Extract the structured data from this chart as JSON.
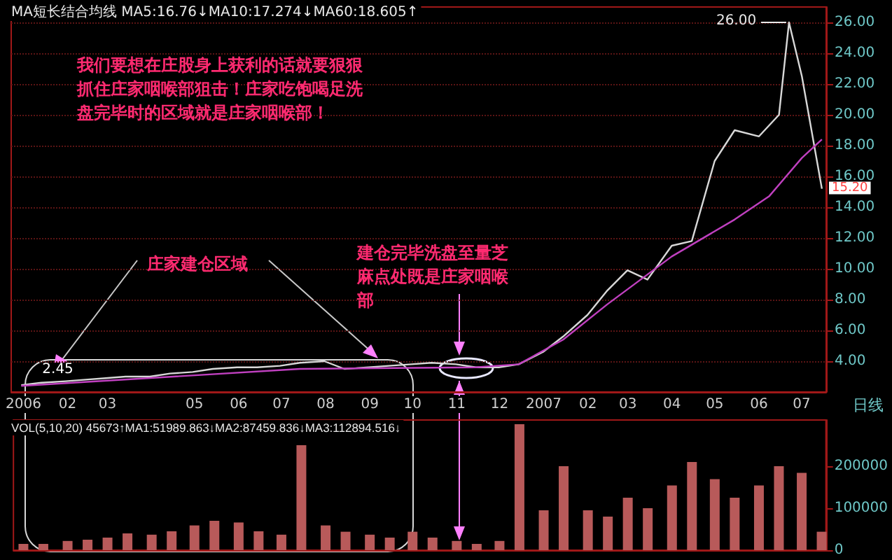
{
  "chart_data": [
    {
      "type": "line",
      "title": "MA短长结合均线 MA5:16.76↓MA10:17.274↓MA60:18.605↑",
      "x": [
        "2006-01-01",
        "2006-01-15",
        "2006-02-01",
        "2006-02-15",
        "2006-03-01",
        "2006-03-15",
        "2006-04-01",
        "2006-04-15",
        "2006-05-01",
        "2006-05-15",
        "2006-06-01",
        "2006-06-15",
        "2006-07-01",
        "2006-07-15",
        "2006-08-01",
        "2006-08-15",
        "2006-09-01",
        "2006-09-15",
        "2006-10-01",
        "2006-10-15",
        "2006-11-01",
        "2006-11-15",
        "2006-12-01",
        "2006-12-15",
        "2007-01-01",
        "2007-01-15",
        "2007-02-01",
        "2007-02-15",
        "2007-03-01",
        "2007-03-15",
        "2007-04-01",
        "2007-04-15",
        "2007-05-01",
        "2007-05-15",
        "2007-06-01",
        "2007-06-15",
        "2007-06-22",
        "2007-07-01",
        "2007-07-15"
      ],
      "series": [
        {
          "color": "#d8d8d8",
          "values": [
            2.45,
            2.6,
            2.7,
            2.8,
            2.9,
            3.0,
            3.0,
            3.2,
            3.3,
            3.5,
            3.6,
            3.6,
            3.7,
            3.9,
            4.0,
            3.5,
            3.6,
            3.7,
            3.8,
            3.9,
            3.8,
            3.6,
            3.6,
            3.8,
            4.6,
            5.6,
            7.0,
            8.6,
            9.9,
            9.3,
            11.5,
            11.8,
            17.0,
            19.0,
            18.6,
            20.0,
            26,
            22.5,
            15.2
          ]
        },
        {
          "color": "#c040c0",
          "x": [
            "2006-01-01",
            "2006-07-15",
            "2006-11-15",
            "2006-12-15",
            "2007-01-15",
            "2007-02-15",
            "2007-04-01",
            "2007-05-15",
            "2007-06-08",
            "2007-07-01",
            "2007-07-15"
          ],
          "values": [
            2.4,
            3.5,
            3.6,
            3.8,
            5.4,
            7.7,
            10.8,
            13.2,
            14.7,
            17.2,
            18.4
          ]
        }
      ],
      "xlim": [
        "2005-12-25",
        "2007-07-18"
      ],
      "ylim": [
        2,
        27
      ],
      "yticks": [
        {
          "value": 4,
          "label": "4.00"
        },
        {
          "value": 6,
          "label": "6.00"
        },
        {
          "value": 8,
          "label": "8.00"
        },
        {
          "value": 10,
          "label": "10.00"
        },
        {
          "value": 12,
          "label": "12.00"
        },
        {
          "value": 14,
          "label": "14.00"
        },
        {
          "value": 16,
          "label": "16.00"
        },
        {
          "value": 18,
          "label": "18.00"
        },
        {
          "value": 20,
          "label": "20.00"
        },
        {
          "value": 22,
          "label": "22.00"
        },
        {
          "value": 24,
          "label": "24.00"
        },
        {
          "value": 26,
          "label": "26.00"
        }
      ],
      "grid": "y",
      "tick_labels": "y",
      "annotations": [
        "我们要想在庄股身上获利的话就要狠狠抓住庄家咽喉部狙击！庄家吃饱喝足洗盘完毕时的区域就是庄家咽喉部！",
        "庄家建仓区域",
        "建仓完毕洗盘至量芝麻点处既是庄家咽喉部",
        "日线",
        {
          "text": "26.00",
          "x": "2007-06-22",
          "y": 26
        },
        {
          "text": "2.45",
          "x": "2006-01-01",
          "y": 2.45
        },
        {
          "text": "15.20",
          "x": "2007-07-15",
          "y": 15.2
        }
      ]
    },
    {
      "type": "bar",
      "title": "VOL(5,10,20) 45673↑MA1:51989.863↓MA2:87459.836↓MA3:112894.516↓",
      "x": [
        "2006-01-01",
        "2006-01-15",
        "2006-02-01",
        "2006-02-15",
        "2006-03-01",
        "2006-03-15",
        "2006-04-01",
        "2006-04-15",
        "2006-05-01",
        "2006-05-15",
        "2006-06-01",
        "2006-06-15",
        "2006-07-01",
        "2006-07-15",
        "2006-08-01",
        "2006-08-15",
        "2006-09-01",
        "2006-09-15",
        "2006-10-01",
        "2006-10-15",
        "2006-11-01",
        "2006-11-15",
        "2006-12-01",
        "2006-12-15",
        "2007-01-01",
        "2007-01-15",
        "2007-02-01",
        "2007-02-15",
        "2007-03-01",
        "2007-03-15",
        "2007-04-01",
        "2007-04-15",
        "2007-05-01",
        "2007-05-15",
        "2007-06-01",
        "2007-06-15",
        "2007-07-01",
        "2007-07-15"
      ],
      "values": [
        15000,
        15000,
        22000,
        25000,
        30000,
        40000,
        37000,
        45000,
        59000,
        70000,
        66000,
        45000,
        37000,
        250000,
        59000,
        44000,
        37000,
        30000,
        44000,
        30000,
        22000,
        15000,
        22000,
        300000,
        95000,
        200000,
        95000,
        80000,
        125000,
        100000,
        154000,
        210000,
        169000,
        125000,
        154000,
        200000,
        184000,
        44000
      ],
      "color": "#b85a5a",
      "xlim": [
        "2005-12-25",
        "2007-07-18"
      ],
      "xticks": [
        {
          "value": "2006-01-01",
          "label": "2006"
        },
        {
          "value": "2006-02-01",
          "label": "02"
        },
        {
          "value": "2006-03-01",
          "label": "03"
        },
        {
          "value": "2006-05-01",
          "label": "05"
        },
        {
          "value": "2006-06-01",
          "label": "06"
        },
        {
          "value": "2006-07-01",
          "label": "07"
        },
        {
          "value": "2006-08-01",
          "label": "08"
        },
        {
          "value": "2006-09-01",
          "label": "09"
        },
        {
          "value": "2006-10-01",
          "label": "10"
        },
        {
          "value": "2006-11-01",
          "label": "11"
        },
        {
          "value": "2006-12-01",
          "label": "12"
        },
        {
          "value": "2007-01-01",
          "label": "2007"
        },
        {
          "value": "2007-02-01",
          "label": "02"
        },
        {
          "value": "2007-03-01",
          "label": "03"
        },
        {
          "value": "2007-04-01",
          "label": "04"
        },
        {
          "value": "2007-05-01",
          "label": "05"
        },
        {
          "value": "2007-06-01",
          "label": "06"
        },
        {
          "value": "2007-07-01",
          "label": "07"
        }
      ],
      "ylim": [
        0,
        310000
      ],
      "yticks": [
        0,
        100000,
        200000
      ]
    }
  ]
}
